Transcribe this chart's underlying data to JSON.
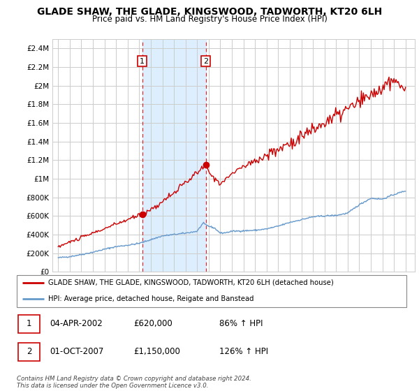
{
  "title": "GLADE SHAW, THE GLADE, KINGSWOOD, TADWORTH, KT20 6LH",
  "subtitle": "Price paid vs. HM Land Registry's House Price Index (HPI)",
  "plot_bg_color": "#f0f0f0",
  "shaded_region_color": "#ddeeff",
  "ylim": [
    0,
    2500000
  ],
  "yticks": [
    0,
    200000,
    400000,
    600000,
    800000,
    1000000,
    1200000,
    1400000,
    1600000,
    1800000,
    2000000,
    2200000,
    2400000
  ],
  "ytick_labels": [
    "£0",
    "£200K",
    "£400K",
    "£600K",
    "£800K",
    "£1M",
    "£1.2M",
    "£1.4M",
    "£1.6M",
    "£1.8M",
    "£2M",
    "£2.2M",
    "£2.4M"
  ],
  "sale1_x": 2002.25,
  "sale1_y": 620000,
  "sale1_label": "1",
  "sale2_x": 2007.75,
  "sale2_y": 1150000,
  "sale2_label": "2",
  "red_line_color": "#cc0000",
  "blue_line_color": "#6699cc",
  "legend_text_red": "GLADE SHAW, THE GLADE, KINGSWOOD, TADWORTH, KT20 6LH (detached house)",
  "legend_text_blue": "HPI: Average price, detached house, Reigate and Banstead",
  "table_row1": [
    "1",
    "04-APR-2002",
    "£620,000",
    "86% ↑ HPI"
  ],
  "table_row2": [
    "2",
    "01-OCT-2007",
    "£1,150,000",
    "126% ↑ HPI"
  ],
  "footer": "Contains HM Land Registry data © Crown copyright and database right 2024.\nThis data is licensed under the Open Government Licence v3.0.",
  "title_fontsize": 10,
  "subtitle_fontsize": 9,
  "xlim_left": 1994.5,
  "xlim_right": 2025.8
}
